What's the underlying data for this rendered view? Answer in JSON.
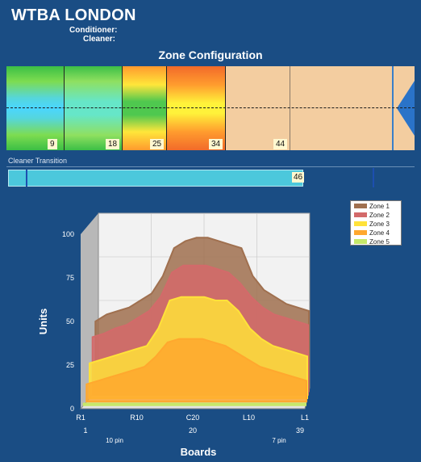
{
  "header": {
    "title": "WTBA LONDON",
    "conditioner_label": "Conditioner:",
    "cleaner_label": "Cleaner:"
  },
  "zone_configuration": {
    "title": "Zone Configuration",
    "markers": [
      "9",
      "18",
      "25",
      "34",
      "44"
    ]
  },
  "cleaner_transition": {
    "label": "Cleaner Transition",
    "value": "46"
  },
  "chart_data": {
    "type": "area",
    "ylabel": "Units",
    "xlabel": "Boards",
    "ylim": [
      0,
      100
    ],
    "yticks": [
      "0",
      "25",
      "50",
      "75",
      "100"
    ],
    "xticks": [
      "R1",
      "R10",
      "C20",
      "L10",
      "L1"
    ],
    "xsub_numbers": [
      "1",
      "20",
      "39"
    ],
    "xsub_pins": [
      "10 pin",
      "7 pin"
    ],
    "x": [
      1,
      3,
      5,
      7,
      9,
      11,
      13,
      15,
      17,
      19,
      21,
      23,
      25,
      27,
      29,
      31,
      33,
      35,
      37,
      39
    ],
    "series": [
      {
        "name": "Zone 1",
        "color": "#a0704f",
        "values": [
          40,
          44,
          46,
          48,
          52,
          56,
          66,
          82,
          86,
          88,
          88,
          86,
          84,
          82,
          66,
          58,
          54,
          50,
          48,
          46
        ]
      },
      {
        "name": "Zone 2",
        "color": "#d36a6a",
        "values": [
          33,
          35,
          38,
          40,
          44,
          48,
          56,
          70,
          74,
          74,
          74,
          72,
          70,
          64,
          56,
          50,
          46,
          44,
          42,
          40
        ]
      },
      {
        "name": "Zone 3",
        "color": "#ffe23a",
        "values": [
          20,
          22,
          24,
          26,
          28,
          30,
          40,
          56,
          58,
          58,
          58,
          56,
          56,
          50,
          40,
          34,
          30,
          28,
          26,
          24
        ]
      },
      {
        "name": "Zone 4",
        "color": "#ffa82e",
        "values": [
          10,
          12,
          14,
          16,
          18,
          20,
          26,
          34,
          36,
          36,
          36,
          34,
          32,
          28,
          24,
          20,
          18,
          16,
          14,
          12
        ]
      },
      {
        "name": "Zone 5",
        "color": "#c6e86a",
        "values": [
          1,
          1,
          1,
          1,
          1,
          1,
          1,
          1,
          1,
          1,
          1,
          1,
          1,
          1,
          1,
          1,
          1,
          1,
          1,
          1
        ]
      }
    ],
    "legend": "top-right",
    "grid": true
  }
}
